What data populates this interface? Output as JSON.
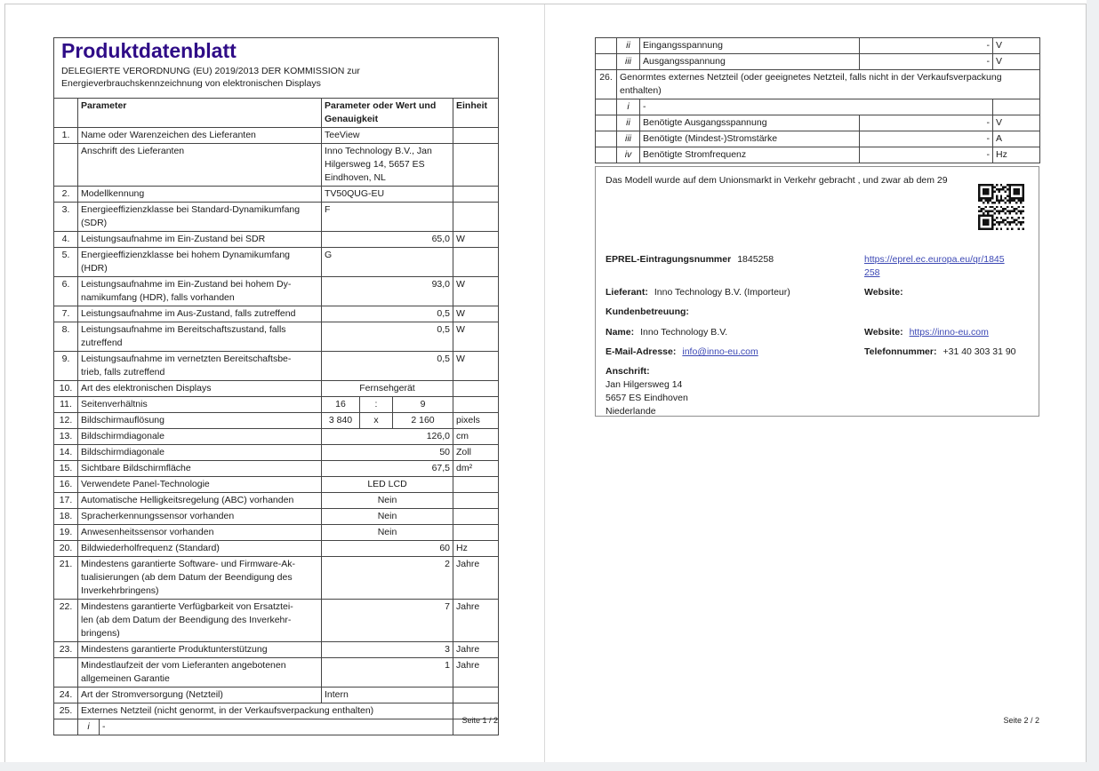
{
  "page1": {
    "title": "Produktdatenblatt",
    "subtitle": "DELEGIERTE VERORDNUNG (EU) 2019/2013 DER KOMMISSION zur\nEnergieverbrauchskennzeichnung von elektronischen Displays",
    "header": {
      "param": "Parameter",
      "value": "Parameter oder Wert und\nGenauigkeit",
      "unit": "Einheit"
    },
    "rows": [
      {
        "n": "1.",
        "label": "Name oder Warenzeichen des Lieferanten",
        "value": "TeeView",
        "align": "l",
        "unit": ""
      },
      {
        "n": "",
        "label": "Anschrift des Lieferanten",
        "value": "Inno Technology B.V., Jan\nHilgersweg 14, 5657 ES\nEindhoven, NL",
        "align": "l",
        "unit": ""
      },
      {
        "n": "2.",
        "label": "Modellkennung",
        "value": "TV50QUG-EU",
        "align": "l",
        "unit": ""
      },
      {
        "n": "3.",
        "label": "Energieeffizienzklasse bei Standard-Dynamikumfang\n(SDR)",
        "value": "F",
        "align": "l",
        "unit": ""
      },
      {
        "n": "4.",
        "label": "Leistungsaufnahme im Ein-Zustand bei SDR",
        "value": "65,0",
        "align": "r",
        "unit": "W"
      },
      {
        "n": "5.",
        "label": "Energieeffizienzklasse bei hohem Dynamikumfang\n(HDR)",
        "value": "G",
        "align": "l",
        "unit": ""
      },
      {
        "n": "6.",
        "label": "Leistungsaufnahme im Ein-Zustand bei hohem Dy-\nnamikumfang (HDR), falls vorhanden",
        "value": "93,0",
        "align": "r",
        "unit": "W"
      },
      {
        "n": "7.",
        "label": "Leistungsaufnahme im Aus-Zustand, falls zutreffend",
        "value": "0,5",
        "align": "r",
        "unit": "W"
      },
      {
        "n": "8.",
        "label": "Leistungsaufnahme im Bereitschaftszustand, falls\nzutreffend",
        "value": "0,5",
        "align": "r",
        "unit": "W"
      },
      {
        "n": "9.",
        "label": "Leistungsaufnahme im vernetzten Bereitschaftsbe-\ntrieb, falls zutreffend",
        "value": "0,5",
        "align": "r",
        "unit": "W"
      },
      {
        "n": "10.",
        "label": "Art des elektronischen Displays",
        "value": "Fernsehgerät",
        "align": "c",
        "unit": ""
      },
      {
        "n": "11.",
        "label": "Seitenverhältnis",
        "split": [
          "16",
          ":",
          "9"
        ],
        "unit": ""
      },
      {
        "n": "12.",
        "label": "Bildschirmauflösung",
        "split": [
          "3 840",
          "x",
          "2 160"
        ],
        "unit": "pixels"
      },
      {
        "n": "13.",
        "label": "Bildschirmdiagonale",
        "value": "126,0",
        "align": "r",
        "unit": "cm"
      },
      {
        "n": "14.",
        "label": "Bildschirmdiagonale",
        "value": "50",
        "align": "r",
        "unit": "Zoll"
      },
      {
        "n": "15.",
        "label": "Sichtbare Bildschirmfläche",
        "value": "67,5",
        "align": "r",
        "unit": "dm²"
      },
      {
        "n": "16.",
        "label": "Verwendete Panel-Technologie",
        "value": "LED LCD",
        "align": "cr",
        "unit": ""
      },
      {
        "n": "17.",
        "label": "Automatische Helligkeitsregelung (ABC) vorhanden",
        "value": "Nein",
        "align": "cr",
        "unit": ""
      },
      {
        "n": "18.",
        "label": "Spracherkennungssensor vorhanden",
        "value": "Nein",
        "align": "cr",
        "unit": ""
      },
      {
        "n": "19.",
        "label": "Anwesenheitssensor vorhanden",
        "value": "Nein",
        "align": "cr",
        "unit": ""
      },
      {
        "n": "20.",
        "label": "Bildwiederholfrequenz (Standard)",
        "value": "60",
        "align": "r",
        "unit": "Hz"
      },
      {
        "n": "21.",
        "label": "Mindestens garantierte Software- und Firmware-Ak-\ntualisierungen (ab dem Datum der Beendigung des\nInverkehrbringens)",
        "value": "2",
        "align": "r",
        "unit": "Jahre"
      },
      {
        "n": "22.",
        "label": "Mindestens garantierte Verfügbarkeit von Ersatztei-\nlen (ab dem Datum der Beendigung des Inverkehr-\nbringens)",
        "value": "7",
        "align": "r",
        "unit": "Jahre"
      },
      {
        "n": "23.",
        "label": "Mindestens garantierte Produktunterstützung",
        "value": "3",
        "align": "r",
        "unit": "Jahre"
      },
      {
        "n": "",
        "label": "Mindestlaufzeit der vom Lieferanten angebotenen\nallgemeinen Garantie",
        "value": "1",
        "align": "r",
        "unit": "Jahre"
      },
      {
        "n": "24.",
        "label": "Art der Stromversorgung (Netzteil)",
        "value": "Intern",
        "align": "l",
        "unit": ""
      },
      {
        "n": "25.",
        "label": "Externes Netzteil (nicht genormt, in der Verkaufsverpackung enthalten)",
        "span": true
      },
      {
        "roman": "i",
        "dash": "-",
        "sub": true
      }
    ],
    "footer": "Seite 1 / 2"
  },
  "page2": {
    "rows": [
      {
        "roman": "ii",
        "label": "Eingangsspannung",
        "value": "-",
        "unit": "V"
      },
      {
        "roman": "iii",
        "label": "Ausgangsspannung",
        "value": "-",
        "unit": "V"
      },
      {
        "n": "26.",
        "label": "Genormtes externes Netzteil (oder geeignetes Netzteil, falls nicht in der Verkaufsverpackung\nenthalten)",
        "span": true
      },
      {
        "roman": "i",
        "dash": "-",
        "sub": true
      },
      {
        "roman": "ii",
        "label": "Benötigte Ausgangsspannung",
        "value": "-",
        "unit": "V"
      },
      {
        "roman": "iii",
        "label": "Benötigte (Mindest-)Stromstärke",
        "value": "-",
        "unit": "A"
      },
      {
        "roman": "iv",
        "label": "Benötigte Stromfrequenz",
        "value": "-",
        "unit": "Hz"
      }
    ],
    "infobox": {
      "intro": "Das Modell wurde auf dem Unionsmarkt in Verkehr gebracht , und zwar ab dem 29",
      "qr_icon": "qr-code",
      "eprel_label": "EPREL-Eintragungsnummer",
      "eprel_value": "1845258",
      "eprel_link": "https://eprel.ec.europa.eu/qr/1845258",
      "lieferant_label": "Lieferant:",
      "lieferant_value": "Inno Technology B.V. (Importeur)",
      "website1_label": "Website:",
      "kundenbetreuung_label": "Kundenbetreuung:",
      "name_label": "Name:",
      "name_value": "Inno Technology B.V.",
      "website2_label": "Website:",
      "website2_link": "https://inno-eu.com",
      "email_label": "E-Mail-Adresse:",
      "email_link": "info@inno-eu.com",
      "phone_label": "Telefonnummer:",
      "phone_value": "+31 40 303 31 90",
      "anschrift_label": "Anschrift:",
      "anschrift_lines": "Jan Hilgersweg 14\n5657 ES Eindhoven\nNiederlande"
    },
    "footer": "Seite 2 / 2"
  },
  "colors": {
    "title": "#2f0c87",
    "link": "#3b47b4",
    "grid": "#454545"
  }
}
